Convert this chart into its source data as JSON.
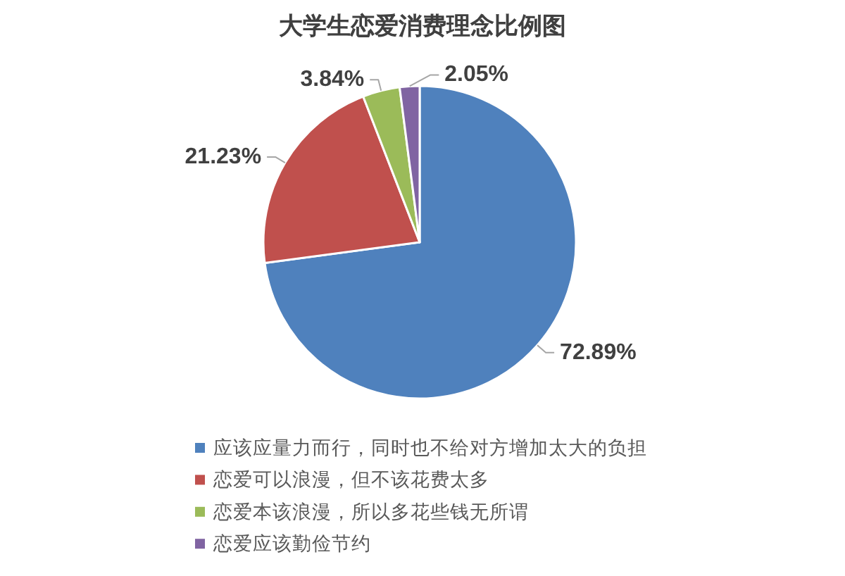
{
  "chart_data": {
    "type": "pie",
    "title": "大学生恋爱消费理念比例图",
    "categories": [
      "应该应量力而行，同时也不给对方增加太大的负担",
      "恋爱可以浪漫，但不该花费太多",
      "恋爱本该浪漫，所以多花些钱无所谓",
      "恋爱应该勤俭节约"
    ],
    "values": [
      72.89,
      21.23,
      3.84,
      2.05
    ],
    "colors": [
      "#4f81bd",
      "#c0504d",
      "#9bbb59",
      "#8064a2"
    ],
    "value_labels": [
      "72.89%",
      "21.23%",
      "3.84%",
      "2.05%"
    ],
    "legend": "bottom"
  }
}
